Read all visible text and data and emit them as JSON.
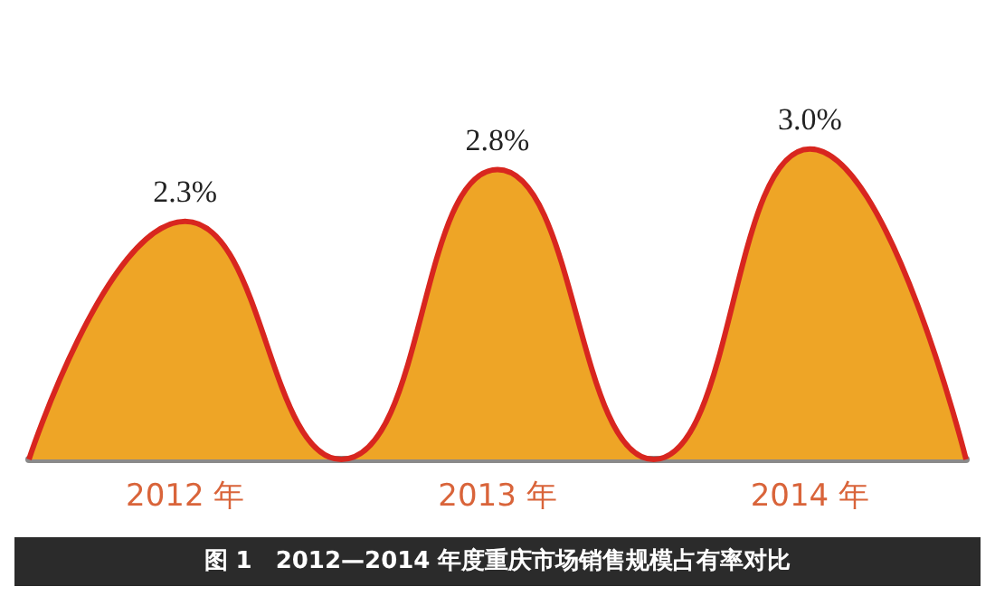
{
  "chart_data": {
    "type": "area",
    "title": "图 1　2012—2014 年度重庆市场销售规模占有率对比",
    "categories": [
      null,
      "2012 年",
      null,
      "2013 年",
      null,
      "2014 年",
      null
    ],
    "series": [
      {
        "color": "#eea526",
        "values": [
          0,
          2.3,
          0,
          2.8,
          0,
          3.0,
          0
        ],
        "value_labels": [
          null,
          "2.3%",
          null,
          "2.8%",
          null,
          "3.0%",
          null
        ]
      }
    ],
    "grid": false,
    "marker": "none"
  }
}
